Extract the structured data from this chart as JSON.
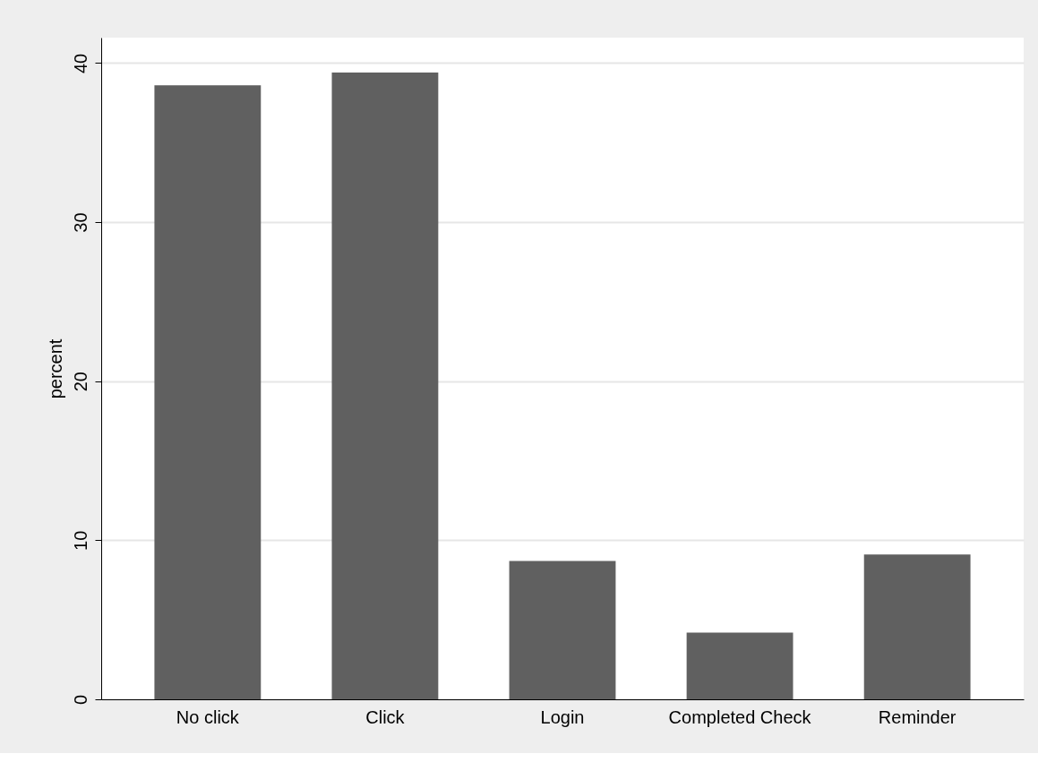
{
  "chart_data": {
    "type": "bar",
    "ylabel": "percent",
    "categories": [
      "No click",
      "Click",
      "Login",
      "Completed Check",
      "Reminder"
    ],
    "values": [
      38.6,
      39.4,
      8.7,
      4.2,
      9.1
    ],
    "color": "#606060",
    "ylim": [
      0,
      41.6
    ],
    "yticks": [
      0,
      10,
      20,
      30,
      40
    ],
    "grid": "y"
  }
}
